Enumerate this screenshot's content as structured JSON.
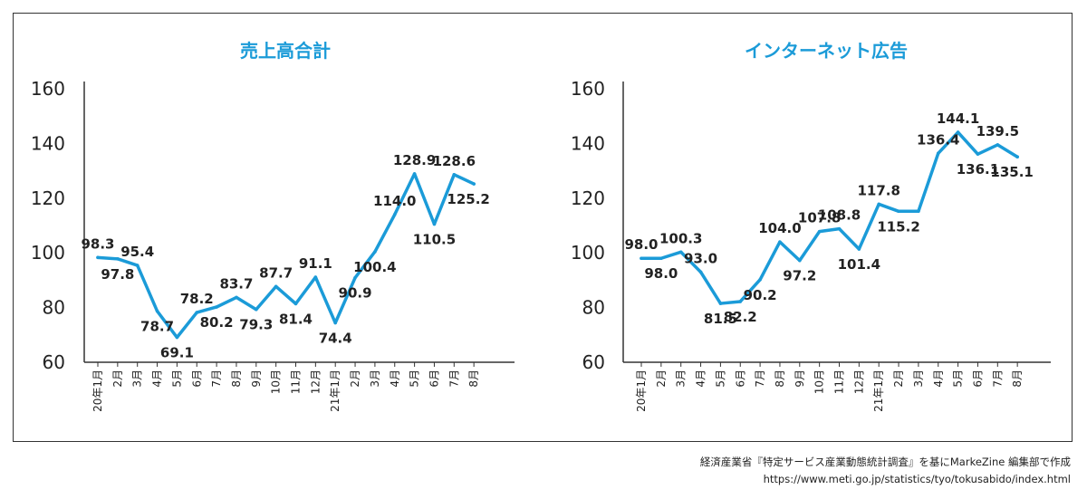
{
  "chart_data": [
    {
      "type": "line",
      "title": "売上高合計",
      "xlabel": "",
      "ylabel": "",
      "ylim": [
        60,
        160
      ],
      "yticks": [
        60,
        80,
        100,
        120,
        140,
        160
      ],
      "grid": false,
      "legend": "none",
      "color": "#1b9bd8",
      "categories": [
        "20年1月",
        "2月",
        "3月",
        "4月",
        "5月",
        "6月",
        "7月",
        "8月",
        "9月",
        "10月",
        "11月",
        "12月",
        "21年1月",
        "2月",
        "3月",
        "4月",
        "5月",
        "6月",
        "7月",
        "8月"
      ],
      "values": [
        98.3,
        97.8,
        95.4,
        78.7,
        69.1,
        78.2,
        80.2,
        83.7,
        79.3,
        87.7,
        81.4,
        91.1,
        74.4,
        90.9,
        100.4,
        114.0,
        128.9,
        110.5,
        128.6,
        125.2
      ],
      "labels": [
        "98.3",
        "97.8",
        "95.4",
        "78.7",
        "69.1",
        "78.2",
        "80.2",
        "83.7",
        "79.3",
        "87.7",
        "81.4",
        "91.1",
        "74.4",
        "90.9",
        "100.4",
        "114.0",
        "128.9",
        "110.5",
        "128.6",
        "125.2"
      ]
    },
    {
      "type": "line",
      "title": "インターネット広告",
      "xlabel": "",
      "ylabel": "",
      "ylim": [
        60,
        160
      ],
      "yticks": [
        60,
        80,
        100,
        120,
        140,
        160
      ],
      "grid": false,
      "legend": "none",
      "color": "#1b9bd8",
      "categories": [
        "20年1月",
        "2月",
        "3月",
        "4月",
        "5月",
        "6月",
        "7月",
        "8月",
        "9月",
        "10月",
        "11月",
        "12月",
        "21年1月",
        "2月",
        "3月",
        "4月",
        "5月",
        "6月",
        "7月",
        "8月"
      ],
      "values": [
        98.0,
        98.0,
        100.3,
        93.0,
        81.5,
        82.2,
        90.2,
        104.0,
        97.2,
        107.8,
        108.8,
        101.4,
        117.8,
        115.2,
        115.2,
        136.4,
        144.1,
        136.1,
        139.5,
        135.1
      ],
      "labels": [
        "98.0",
        "98.0",
        "100.3",
        "93.0",
        "81.5",
        "82.2",
        "90.2",
        "104.0",
        "97.2",
        "107.8",
        "108.8",
        "101.4",
        "117.8",
        "115.2",
        "",
        "136.4",
        "144.1",
        "136.1",
        "139.5",
        "135.1"
      ]
    }
  ],
  "footer": {
    "source_line": "経済産業省『特定サービス産業動態統計調査』を基にMarkeZine 編集部で作成",
    "url": "https://www.meti.go.jp/statistics/tyo/tokusabido/index.html"
  }
}
